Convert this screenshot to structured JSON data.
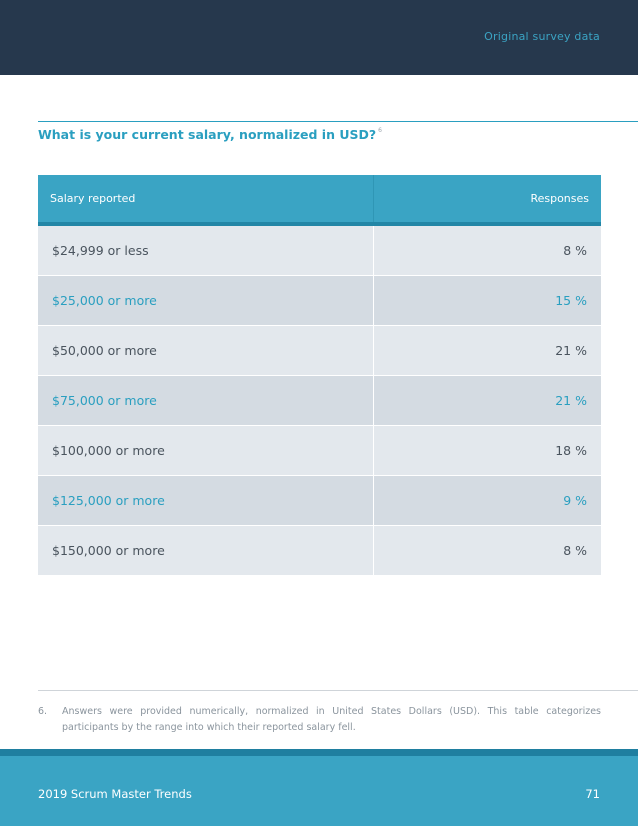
{
  "header": {
    "section_label": "Original survey data"
  },
  "question": {
    "title": "What is your current salary, normalized in USD?",
    "footnote_ref": "6"
  },
  "table": {
    "columns": [
      "Salary reported",
      "Responses"
    ],
    "rows": [
      {
        "salary": "$24,999 or less",
        "responses": "8 %"
      },
      {
        "salary": "$25,000 or more",
        "responses": "15 %"
      },
      {
        "salary": "$50,000 or more",
        "responses": "21 %"
      },
      {
        "salary": "$75,000 or more",
        "responses": "21 %"
      },
      {
        "salary": "$100,000 or more",
        "responses": "18 %"
      },
      {
        "salary": "$125,000 or more",
        "responses": "9 %"
      },
      {
        "salary": "$150,000 or more",
        "responses": "8 %"
      }
    ]
  },
  "footnote": {
    "number": "6.",
    "text": "Answers were provided numerically, normalized in United States Dollars (USD). This table categorizes participants by the range into which their reported salary fell."
  },
  "footer": {
    "title": "2019 Scrum Master Trends",
    "page_number": "71"
  }
}
